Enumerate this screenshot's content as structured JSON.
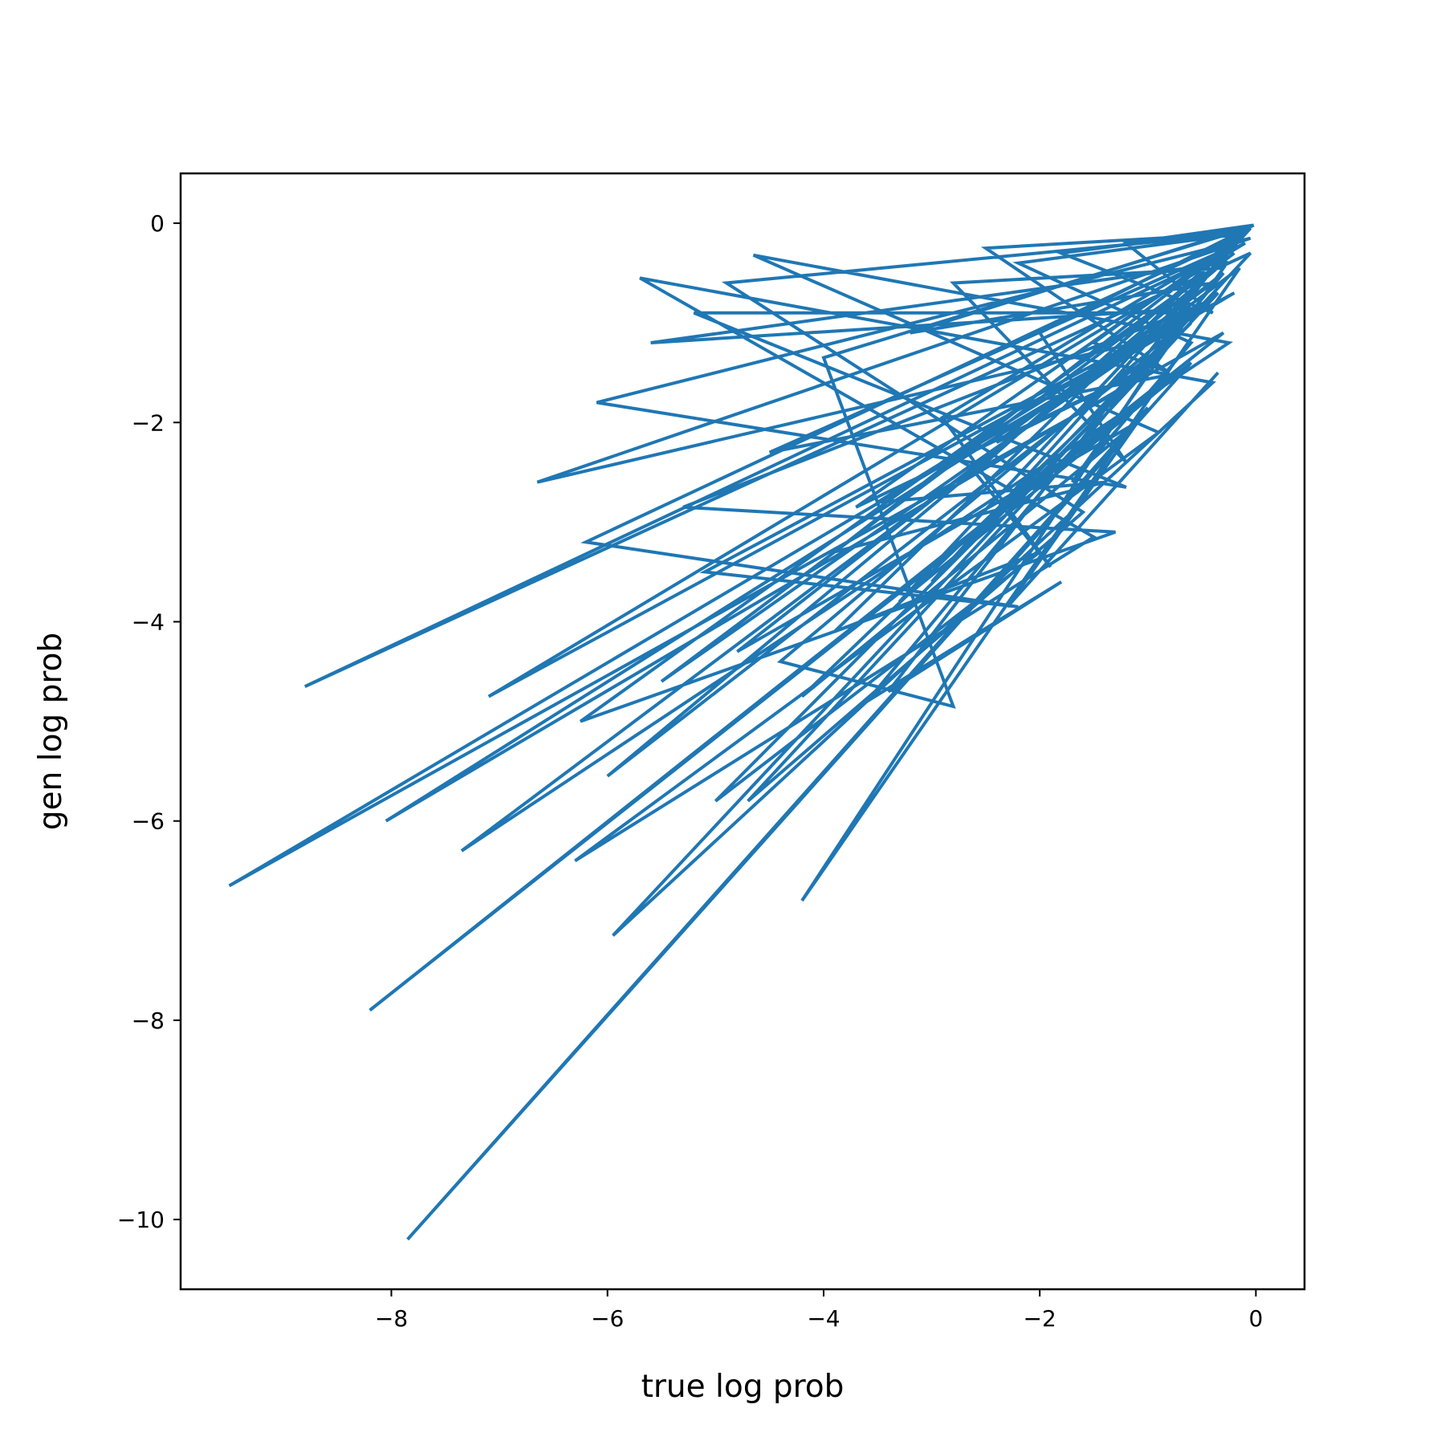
{
  "chart_data": {
    "type": "line",
    "title": "",
    "xlabel": "true log prob",
    "ylabel": "gen log prob",
    "xlim": [
      -9.95,
      0.45
    ],
    "ylim": [
      -10.7,
      0.5
    ],
    "xticks": [
      -8,
      -6,
      -4,
      -2,
      0
    ],
    "xtick_labels": [
      "−8",
      "−6",
      "−4",
      "−2",
      "0"
    ],
    "yticks": [
      0,
      -2,
      -4,
      -6,
      -8,
      -10
    ],
    "ytick_labels": [
      "0",
      "−2",
      "−4",
      "−6",
      "−8",
      "−10"
    ],
    "grid": false,
    "legend": "none",
    "series": [
      {
        "color": "#1f77b4",
        "x": [
          -0.35,
          -2.3,
          -1.0,
          -7.85,
          -0.6,
          -8.2,
          -0.3,
          -9.5,
          -0.2,
          -7.1,
          -0.1,
          -8.8,
          -0.05,
          -5.95,
          -0.4,
          -5.7,
          -1.5,
          -6.3,
          -0.9,
          -4.65,
          -0.25,
          -7.35,
          -0.15,
          -4.2,
          -1.0,
          -8.05,
          -0.5,
          -5.6,
          -0.3,
          -6.0,
          -0.7,
          -6.65,
          -0.05,
          -6.1,
          -1.2,
          -5.2,
          -0.6,
          -5.1,
          -2.2,
          -6.2,
          -0.1,
          -4.9,
          -1.6,
          -4.7,
          -0.35,
          -5.5,
          -0.2,
          -6.25,
          -1.3,
          -5.3,
          -0.45,
          -4.4,
          -2.8,
          -4.0,
          -0.08,
          -3.9,
          -2.0,
          -5.0,
          -0.6,
          -4.2,
          -1.1,
          -4.8,
          -0.3,
          -3.6,
          -1.8,
          -3.4,
          -0.25,
          -4.5,
          -0.7,
          -3.3,
          -0.12,
          -3.9,
          -1.4,
          -3.5,
          -0.5,
          -3.0,
          -0.05,
          -2.6,
          -1.9,
          -2.9,
          -0.2,
          -3.7,
          -0.9,
          -2.4,
          -0.4,
          -3.2,
          -0.02,
          -2.0,
          -1.2,
          -2.8,
          -0.3,
          -1.7,
          -0.6,
          -2.2,
          -0.1,
          -2.5,
          -0.8,
          -1.5,
          -0.05,
          -1.8,
          -0.4,
          -1.2,
          -0.02
        ],
        "y": [
          -1.5,
          -3.85,
          -1.85,
          -10.2,
          -1.4,
          -7.9,
          -1.1,
          -6.65,
          -0.7,
          -4.75,
          -0.2,
          -4.65,
          -0.3,
          -7.15,
          -1.6,
          -0.55,
          -3.15,
          -6.4,
          -2.1,
          -0.32,
          -1.2,
          -6.3,
          -0.45,
          -6.8,
          -1.5,
          -6.0,
          -0.85,
          -1.2,
          -0.4,
          -5.55,
          -1.1,
          -2.6,
          -0.15,
          -1.8,
          -2.65,
          -0.9,
          -0.9,
          -3.5,
          -3.85,
          -3.2,
          -0.1,
          -0.6,
          -2.9,
          -5.8,
          -0.7,
          -4.6,
          -0.3,
          -5.0,
          -3.1,
          -2.85,
          -0.8,
          -4.4,
          -4.85,
          -1.35,
          -0.05,
          -4.1,
          -3.3,
          -5.8,
          -1.0,
          -4.75,
          -2.0,
          -4.3,
          -0.5,
          -4.8,
          -3.6,
          -4.7,
          -0.25,
          -2.3,
          -1.5,
          -3.8,
          -0.12,
          -3.3,
          -2.6,
          -2.8,
          -0.8,
          -3.6,
          -0.05,
          -2.5,
          -3.45,
          -1.95,
          -0.2,
          -2.85,
          -1.4,
          -2.2,
          -0.6,
          -1.1,
          -0.02,
          -1.1,
          -2.4,
          -0.6,
          -0.45,
          -2.6,
          -1.2,
          -0.4,
          -0.1,
          -0.25,
          -1.5,
          -1.2,
          -0.05,
          -0.3,
          -0.9,
          -0.2,
          -0.02
        ]
      }
    ]
  }
}
